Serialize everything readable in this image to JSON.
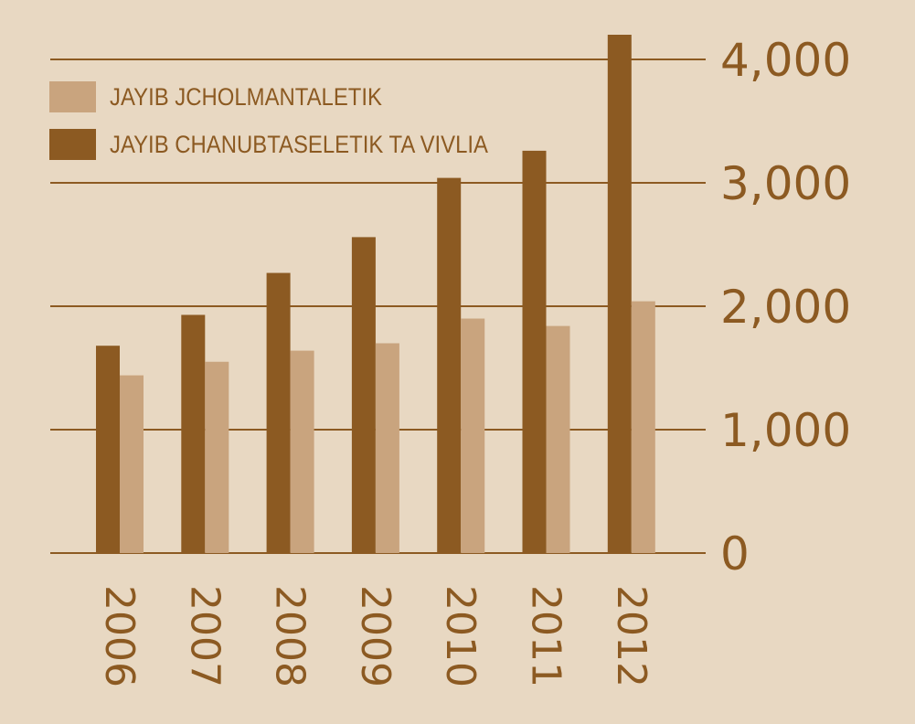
{
  "colors": {
    "background": "#e8d8c2",
    "dark": "#8c5a22",
    "light": "#c9a47e",
    "axis": "#8c5a22",
    "text": "#8c5a22"
  },
  "chart_data": {
    "type": "bar",
    "title": "",
    "xlabel": "",
    "ylabel": "",
    "categories": [
      "2006",
      "2007",
      "2008",
      "2009",
      "2010",
      "2011",
      "2012"
    ],
    "series": [
      {
        "name": "JAYIB CHANUBTASELETIK TA VIVLIA",
        "color": "#8c5a22",
        "values": [
          1680,
          1930,
          2270,
          2560,
          3040,
          3260,
          4200
        ]
      },
      {
        "name": "JAYIB JCHOLMANTALETIK",
        "color": "#c9a47e",
        "values": [
          1440,
          1550,
          1640,
          1700,
          1900,
          1840,
          2040
        ]
      }
    ],
    "legend_order": [
      1,
      0
    ],
    "ylim": [
      0,
      4000
    ],
    "yticks": [
      0,
      1000,
      2000,
      3000,
      4000
    ],
    "ytick_labels": [
      "0",
      "1,000",
      "2,000",
      "3,000",
      "4,000"
    ],
    "y_axis_side": "right",
    "x_tick_rotation": "vertical",
    "grid": true,
    "legend_position": "top-left"
  }
}
